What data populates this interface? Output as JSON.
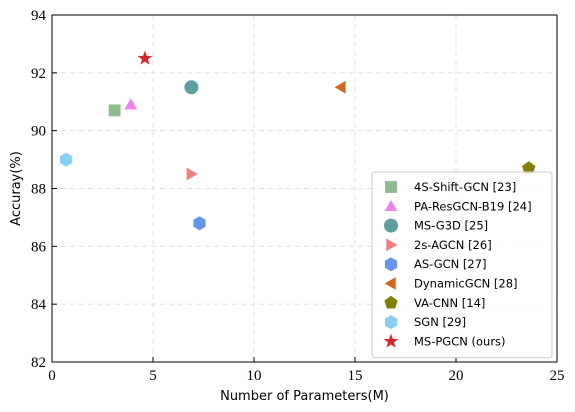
{
  "chart_data": {
    "type": "scatter",
    "xlabel": "Number of Parameters(M)",
    "ylabel": "Accuray(%)",
    "xlim": [
      0,
      25
    ],
    "ylim": [
      82,
      94
    ],
    "xticks": [
      0,
      5,
      10,
      15,
      20,
      25
    ],
    "yticks": [
      82,
      84,
      86,
      88,
      90,
      92,
      94
    ],
    "grid": true,
    "legend_position": "bottom-right",
    "series": [
      {
        "name": "4S-Shift-GCN [23]",
        "marker": "square",
        "color": "#8fbc8f",
        "x": 3.1,
        "y": 90.7
      },
      {
        "name": "PA-ResGCN-B19 [24]",
        "marker": "triangle-up",
        "color": "#ee82ee",
        "x": 3.9,
        "y": 90.9
      },
      {
        "name": "MS-G3D [25]",
        "marker": "circle",
        "color": "#5f9ea0",
        "x": 6.9,
        "y": 91.5
      },
      {
        "name": "2s-AGCN [26]",
        "marker": "triangle-right",
        "color": "#f08080",
        "x": 6.9,
        "y": 88.5
      },
      {
        "name": "AS-GCN [27]",
        "marker": "hexagon",
        "color": "#6495ed",
        "x": 7.3,
        "y": 86.8
      },
      {
        "name": "DynamicGCN [28]",
        "marker": "triangle-left",
        "color": "#d2691e",
        "x": 14.3,
        "y": 91.5
      },
      {
        "name": "VA-CNN [14]",
        "marker": "pentagon",
        "color": "#808000",
        "x": 23.6,
        "y": 88.7
      },
      {
        "name": "SGN [29]",
        "marker": "hexagon",
        "color": "#87cefa",
        "x": 0.7,
        "y": 89.0
      },
      {
        "name": "MS-PGCN (ours)",
        "marker": "star",
        "color": "#d62728",
        "x": 4.6,
        "y": 92.5
      }
    ]
  }
}
